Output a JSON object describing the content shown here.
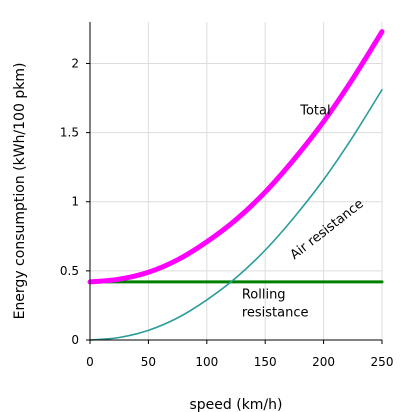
{
  "chart_data": {
    "type": "line",
    "title": "",
    "xlabel": "speed (km/h)",
    "ylabel": "Energy consumption (kWh/100 pkm)",
    "xlim": [
      0,
      250
    ],
    "ylim": [
      0,
      2.3
    ],
    "xticks": [
      0,
      50,
      100,
      150,
      200,
      250
    ],
    "yticks": [
      0,
      0.5,
      1,
      1.5,
      2
    ],
    "xtick_labels": [
      "0",
      "50",
      "100",
      "150",
      "200",
      "250"
    ],
    "ytick_labels": [
      "0",
      "0.5",
      "1",
      "1.5",
      "2"
    ],
    "grid": true,
    "legend": "none",
    "series": [
      {
        "key": "rolling",
        "color": "#008000",
        "x": [
          0,
          50,
          100,
          150,
          200,
          250
        ],
        "y": [
          0.42,
          0.42,
          0.42,
          0.42,
          0.42,
          0.42
        ]
      },
      {
        "key": "air",
        "color": "#2a9d9a",
        "x": [
          0,
          25,
          50,
          75,
          100,
          125,
          150,
          175,
          200,
          225,
          250
        ],
        "y": [
          0,
          0.018,
          0.07,
          0.16,
          0.29,
          0.45,
          0.65,
          0.89,
          1.16,
          1.47,
          1.81
        ]
      },
      {
        "key": "total",
        "color": "#ff00ff",
        "x": [
          0,
          25,
          50,
          75,
          100,
          125,
          150,
          175,
          200,
          225,
          250
        ],
        "y": [
          0.42,
          0.44,
          0.49,
          0.58,
          0.71,
          0.87,
          1.07,
          1.31,
          1.58,
          1.89,
          2.23
        ]
      }
    ],
    "annotations": [
      {
        "key": "total",
        "text": "Total",
        "x": 180,
        "y": 1.63
      },
      {
        "key": "air",
        "text": "Air resistance",
        "x": 175,
        "y": 0.58,
        "rotation": -38
      },
      {
        "key": "rolling1",
        "text": "Rolling",
        "x": 130,
        "y": 0.3
      },
      {
        "key": "rolling2",
        "text": "resistance",
        "x": 130,
        "y": 0.17
      }
    ]
  }
}
